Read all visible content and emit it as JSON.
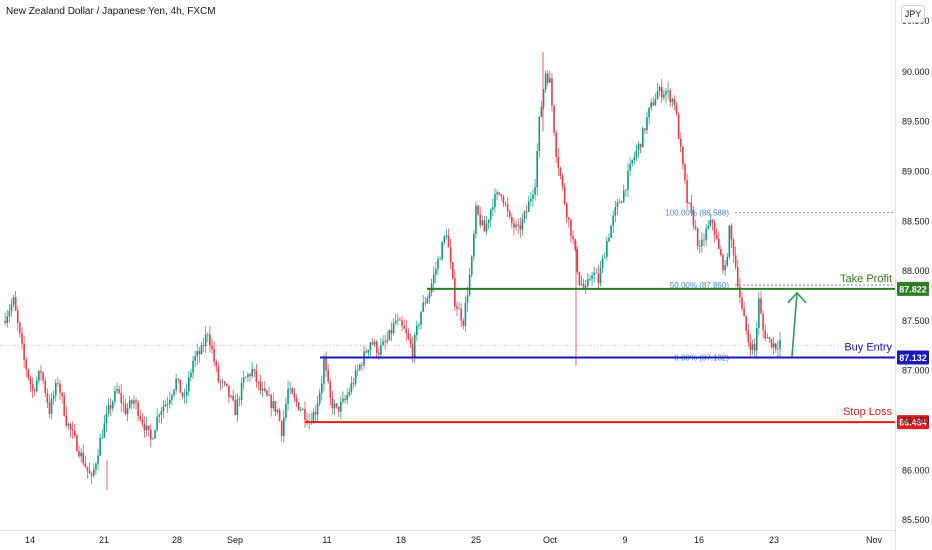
{
  "header": {
    "title": "New Zealand Dollar / Japanese Yen, 4h, FXCM",
    "currency": "JPY"
  },
  "chart_data": {
    "type": "candlestick",
    "ylim": [
      85.5,
      90.5
    ],
    "y_ticks": [
      "85.500",
      "86.000",
      "86.500",
      "87.000",
      "87.500",
      "88.000",
      "88.500",
      "89.000",
      "89.500",
      "90.000"
    ],
    "x_ticks": [
      "14",
      "21",
      "28",
      "Sep",
      "11",
      "18",
      "25",
      "Oct",
      "9",
      "16",
      "23",
      "Nov"
    ],
    "close_path": [
      [
        0,
        87.5
      ],
      [
        5,
        87.7
      ],
      [
        10,
        87.1
      ],
      [
        14,
        86.8
      ],
      [
        18,
        87.0
      ],
      [
        22,
        86.6
      ],
      [
        26,
        86.9
      ],
      [
        30,
        86.5
      ],
      [
        34,
        86.3
      ],
      [
        38,
        86.1
      ],
      [
        42,
        85.9
      ],
      [
        46,
        86.3
      ],
      [
        50,
        86.6
      ],
      [
        54,
        86.8
      ],
      [
        58,
        86.6
      ],
      [
        62,
        86.7
      ],
      [
        66,
        86.5
      ],
      [
        70,
        86.3
      ],
      [
        74,
        86.6
      ],
      [
        78,
        86.7
      ],
      [
        82,
        86.9
      ],
      [
        86,
        86.7
      ],
      [
        90,
        87.1
      ],
      [
        94,
        87.2
      ],
      [
        97,
        87.4
      ],
      [
        99,
        87.2
      ],
      [
        102,
        86.9
      ],
      [
        106,
        86.8
      ],
      [
        110,
        86.6
      ],
      [
        114,
        86.9
      ],
      [
        118,
        87.0
      ],
      [
        122,
        86.8
      ],
      [
        126,
        86.7
      ],
      [
        130,
        86.6
      ],
      [
        132,
        86.4
      ],
      [
        135,
        86.8
      ],
      [
        138,
        86.7
      ],
      [
        142,
        86.6
      ],
      [
        145,
        86.5
      ],
      [
        148,
        86.6
      ],
      [
        151,
        86.9
      ],
      [
        152,
        87.1
      ],
      [
        155,
        86.7
      ],
      [
        158,
        86.6
      ],
      [
        162,
        86.7
      ],
      [
        166,
        86.9
      ],
      [
        170,
        87.1
      ],
      [
        174,
        87.3
      ],
      [
        178,
        87.2
      ],
      [
        182,
        87.3
      ],
      [
        186,
        87.5
      ],
      [
        190,
        87.4
      ],
      [
        194,
        87.2
      ],
      [
        198,
        87.6
      ],
      [
        202,
        87.8
      ],
      [
        206,
        88.1
      ],
      [
        210,
        88.4
      ],
      [
        214,
        87.7
      ],
      [
        218,
        87.5
      ],
      [
        222,
        88.1
      ],
      [
        224,
        88.6
      ],
      [
        228,
        88.4
      ],
      [
        232,
        88.7
      ],
      [
        236,
        88.8
      ],
      [
        240,
        88.5
      ],
      [
        244,
        88.4
      ],
      [
        248,
        88.6
      ],
      [
        252,
        88.9
      ],
      [
        254,
        89.5
      ],
      [
        257,
        90.0
      ],
      [
        259,
        89.9
      ],
      [
        262,
        89.2
      ],
      [
        266,
        88.7
      ],
      [
        270,
        88.3
      ],
      [
        273,
        87.9
      ],
      [
        276,
        87.8
      ],
      [
        279,
        88.0
      ],
      [
        282,
        87.9
      ],
      [
        286,
        88.3
      ],
      [
        290,
        88.6
      ],
      [
        294,
        88.8
      ],
      [
        298,
        89.1
      ],
      [
        302,
        89.3
      ],
      [
        306,
        89.6
      ],
      [
        310,
        89.8
      ],
      [
        314,
        89.8
      ],
      [
        318,
        89.7
      ],
      [
        321,
        89.2
      ],
      [
        324,
        88.7
      ],
      [
        327,
        88.5
      ],
      [
        330,
        88.2
      ],
      [
        333,
        88.4
      ],
      [
        336,
        88.5
      ],
      [
        339,
        88.2
      ],
      [
        342,
        88.0
      ],
      [
        344,
        88.4
      ],
      [
        346,
        88.2
      ],
      [
        348,
        87.9
      ],
      [
        350,
        87.6
      ],
      [
        353,
        87.3
      ],
      [
        356,
        87.2
      ],
      [
        358,
        87.7
      ],
      [
        360,
        87.4
      ],
      [
        363,
        87.3
      ],
      [
        366,
        87.25
      ],
      [
        368,
        87.3
      ]
    ],
    "levels": [
      {
        "label": "Take Profit",
        "value": 87.822,
        "value_label": "87.822",
        "color": "#2e7d22"
      },
      {
        "label": "Buy Entry",
        "value": 87.132,
        "value_label": "87.132",
        "color": "#1818b8"
      },
      {
        "label": "Stop Loss",
        "value": 86.484,
        "value_label": "86.484",
        "color": "#e01c1c"
      }
    ],
    "fib_levels": [
      {
        "label": "100.00% (88.588)",
        "value": 88.588
      },
      {
        "label": "50.00% (87.860)",
        "value": 87.86
      },
      {
        "label": "0.00% (87.132)",
        "value": 87.132
      }
    ],
    "current_price": 87.25,
    "colors": {
      "up": "#089981",
      "down": "#f23645",
      "fib": "#4a86c8",
      "arrow": "#2ca058"
    }
  }
}
